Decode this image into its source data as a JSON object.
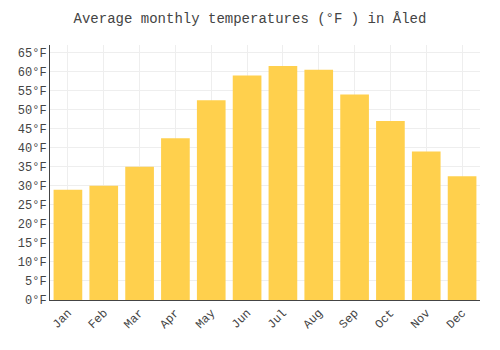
{
  "chart_data": {
    "type": "bar",
    "title": "Average monthly temperatures (°F ) in Åled",
    "categories": [
      "Jan",
      "Feb",
      "Mar",
      "Apr",
      "May",
      "Jun",
      "Jul",
      "Aug",
      "Sep",
      "Oct",
      "Nov",
      "Dec"
    ],
    "values": [
      29.0,
      30.0,
      35.0,
      42.5,
      52.5,
      59.0,
      61.5,
      60.5,
      54.0,
      47.0,
      39.0,
      32.5
    ],
    "color": "#FFD04D",
    "ylim": [
      0,
      67
    ],
    "yticks": [
      {
        "value": 0,
        "label": "0°F"
      },
      {
        "value": 5,
        "label": "5°F"
      },
      {
        "value": 10,
        "label": "10°F"
      },
      {
        "value": 15,
        "label": "15°F"
      },
      {
        "value": 20,
        "label": "20°F"
      },
      {
        "value": 25,
        "label": "25°F"
      },
      {
        "value": 30,
        "label": "30°F"
      },
      {
        "value": 35,
        "label": "35°F"
      },
      {
        "value": 40,
        "label": "40°F"
      },
      {
        "value": 45,
        "label": "45°F"
      },
      {
        "value": 50,
        "label": "50°F"
      },
      {
        "value": 55,
        "label": "55°F"
      },
      {
        "value": 60,
        "label": "60°F"
      },
      {
        "value": 65,
        "label": "65°F"
      }
    ],
    "grid": true
  }
}
